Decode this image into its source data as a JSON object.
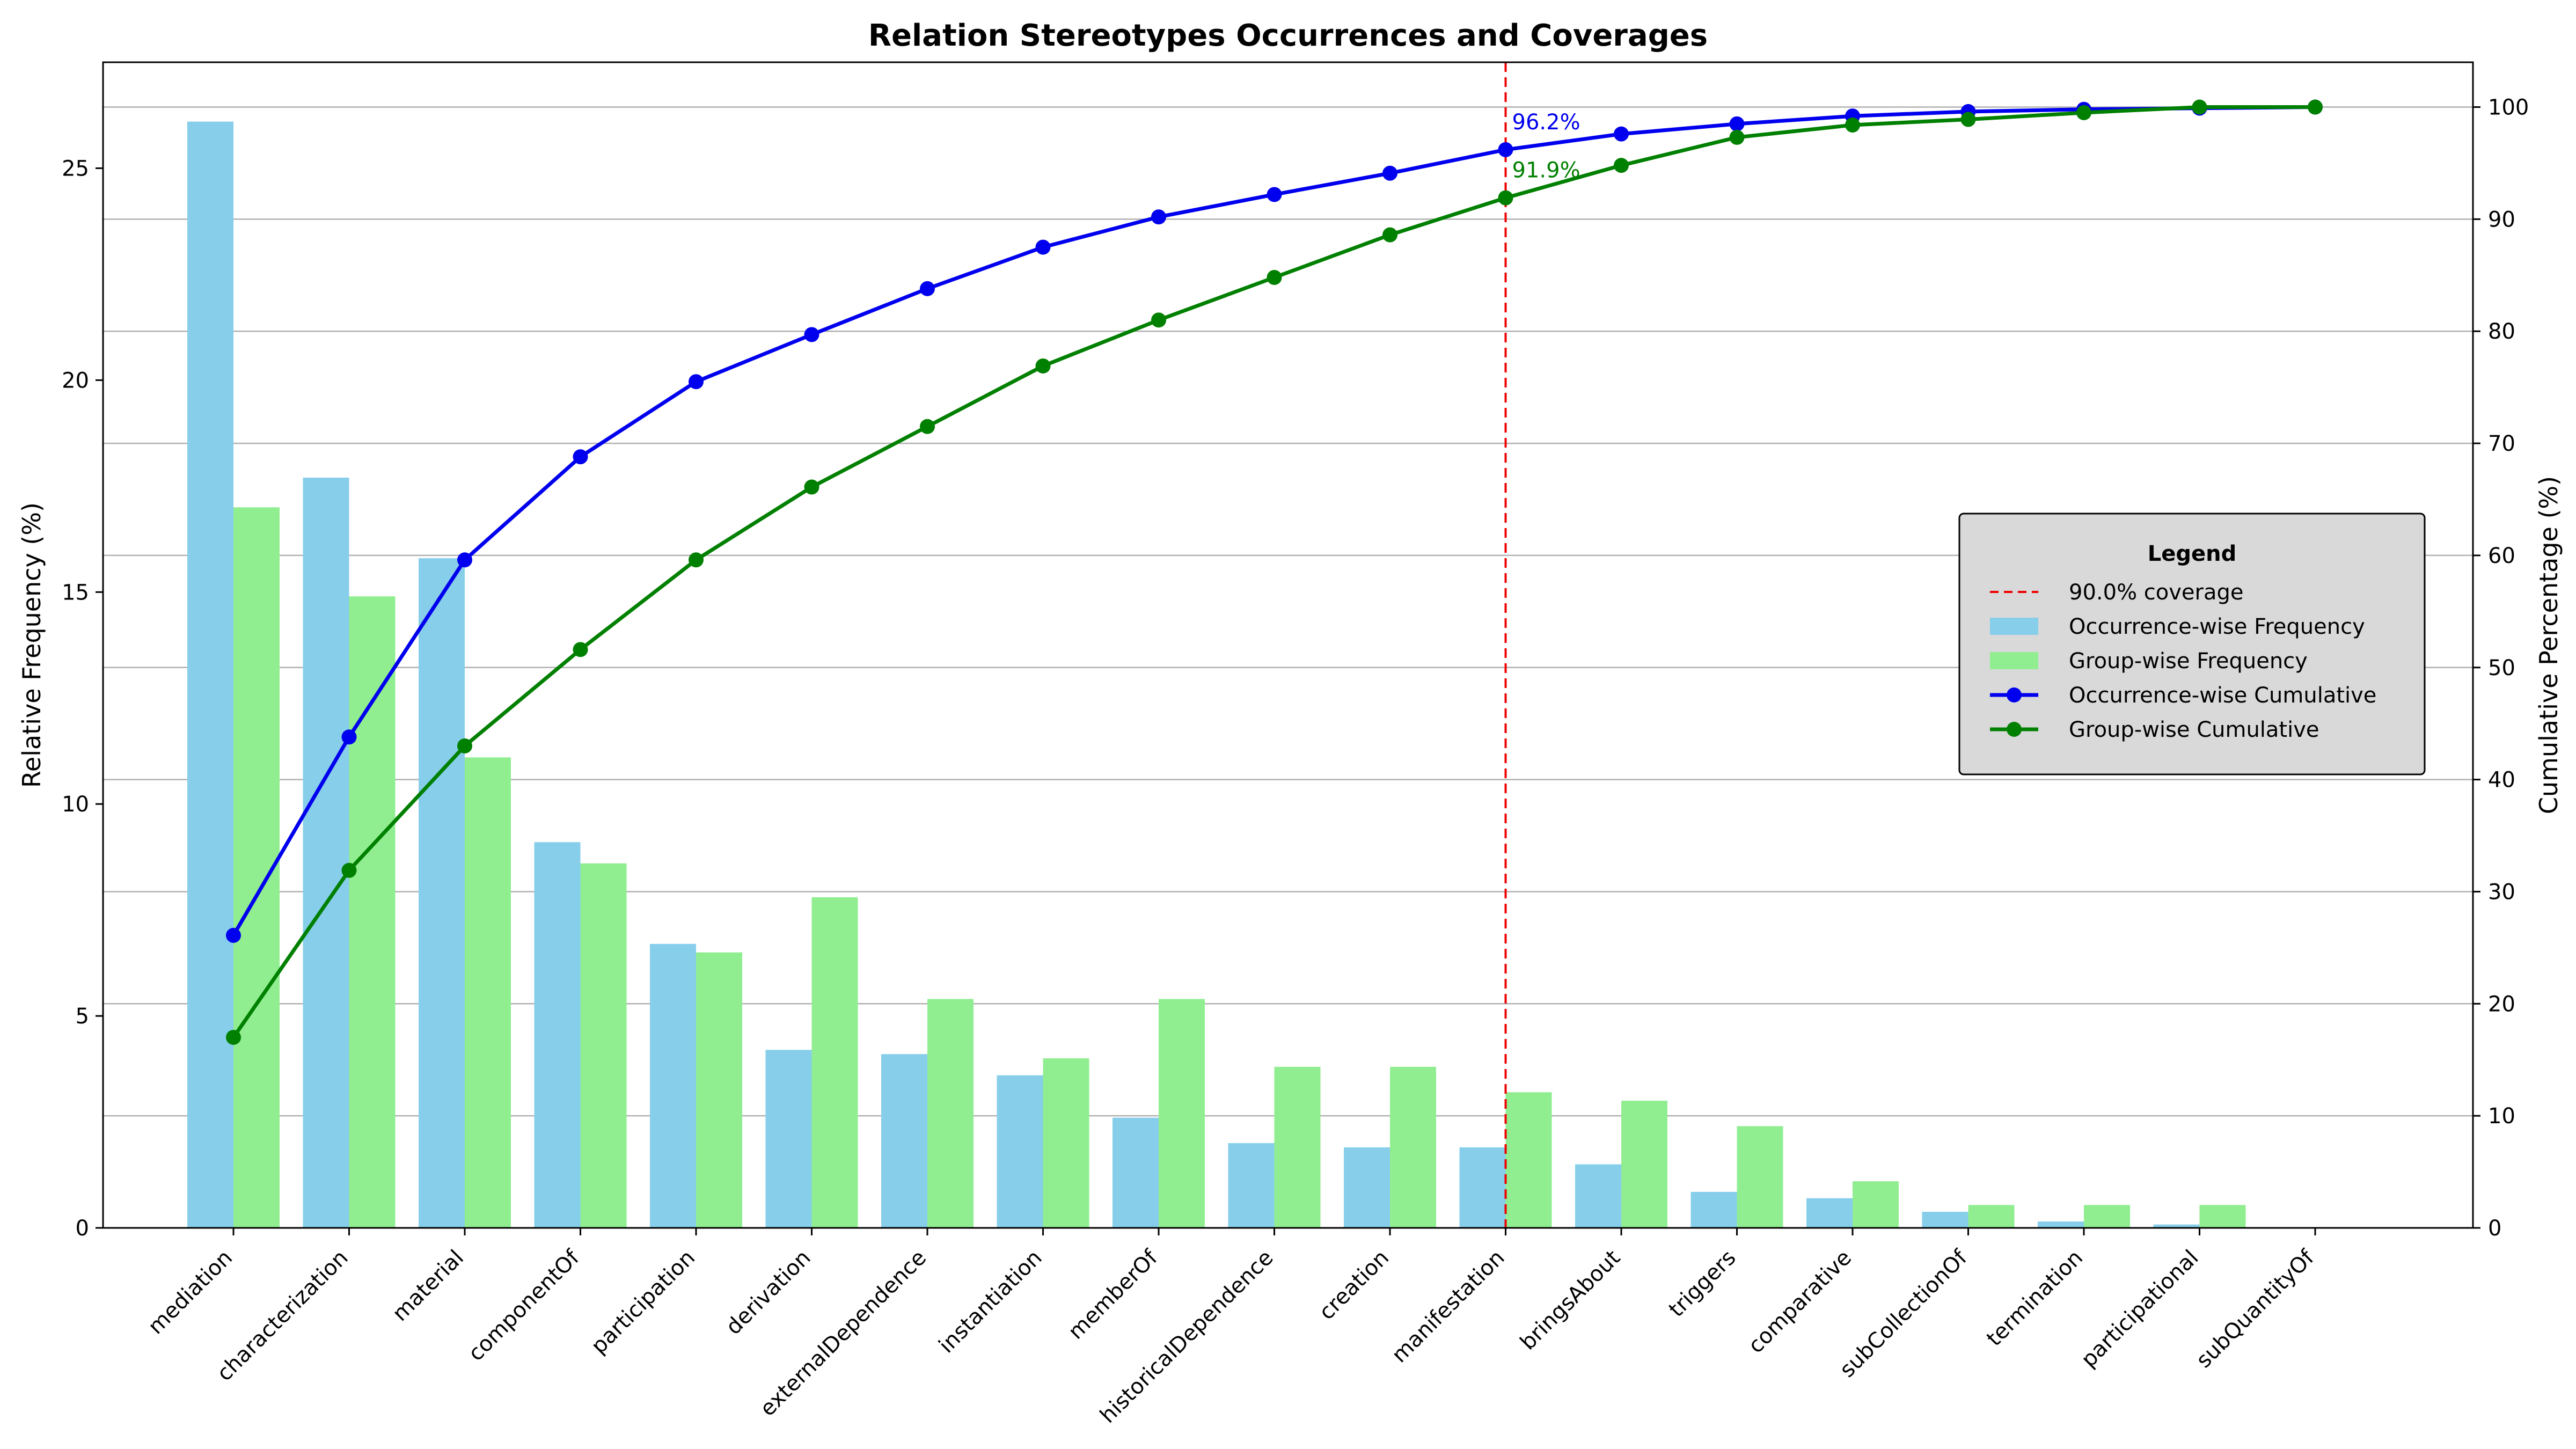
{
  "chart_data": {
    "type": "bar",
    "title": "Relation Stereotypes Occurrences and Coverages",
    "ylabel": "Relative Frequency (%)",
    "y2label": "Cumulative Percentage (%)",
    "ylim": [
      0,
      27.5
    ],
    "y2lim": [
      0,
      104
    ],
    "yticks": [
      0,
      5,
      10,
      15,
      20,
      25
    ],
    "y2ticks": [
      0,
      10,
      20,
      30,
      40,
      50,
      60,
      70,
      80,
      90,
      100
    ],
    "grid": true,
    "legend": {
      "title": "Legend",
      "placement": "center-right"
    },
    "categories": [
      "mediation",
      "characterization",
      "material",
      "componentOf",
      "participation",
      "derivation",
      "externalDependence",
      "instantiation",
      "memberOf",
      "historicalDependence",
      "creation",
      "manifestation",
      "bringsAbout",
      "triggers",
      "comparative",
      "subCollectionOf",
      "termination",
      "participational",
      "subQuantityOf"
    ],
    "series": [
      {
        "name": "Occurrence-wise Frequency",
        "kind": "bar",
        "axis": "left",
        "color": "#87ceeb",
        "values": [
          26.1,
          17.7,
          15.8,
          9.1,
          6.7,
          4.2,
          4.1,
          3.6,
          2.6,
          2.0,
          1.9,
          1.9,
          1.5,
          0.85,
          0.7,
          0.38,
          0.15,
          0.08,
          0.0
        ]
      },
      {
        "name": "Group-wise Frequency",
        "kind": "bar",
        "axis": "left",
        "color": "#90ee90",
        "values": [
          17.0,
          14.9,
          11.1,
          8.6,
          6.5,
          7.8,
          5.4,
          4.0,
          5.4,
          3.8,
          3.8,
          3.2,
          3.0,
          2.4,
          1.1,
          0.54,
          0.54,
          0.54,
          0.0
        ]
      },
      {
        "name": "Occurrence-wise Cumulative",
        "kind": "line",
        "axis": "right",
        "color": "#0000ee",
        "values": [
          26.1,
          43.8,
          59.6,
          68.8,
          75.5,
          79.7,
          83.8,
          87.5,
          90.2,
          92.2,
          94.1,
          96.2,
          97.6,
          98.5,
          99.2,
          99.6,
          99.8,
          99.9,
          100.0
        ]
      },
      {
        "name": "Group-wise Cumulative",
        "kind": "line",
        "axis": "right",
        "color": "#008000",
        "values": [
          17.0,
          31.9,
          43.0,
          51.6,
          59.6,
          66.1,
          71.5,
          76.9,
          81.0,
          84.8,
          88.6,
          91.9,
          94.8,
          97.3,
          98.4,
          98.9,
          99.5,
          100.0,
          100.0
        ]
      }
    ],
    "coverage_line": {
      "name": "90.0% coverage",
      "category": "manifestation",
      "color": "#ee0000"
    },
    "annotations": [
      {
        "text": "96.2%",
        "category": "manifestation",
        "y": 96.2,
        "color": "#0000ee"
      },
      {
        "text": "91.9%",
        "category": "manifestation",
        "y": 91.9,
        "color": "#008000"
      }
    ]
  }
}
